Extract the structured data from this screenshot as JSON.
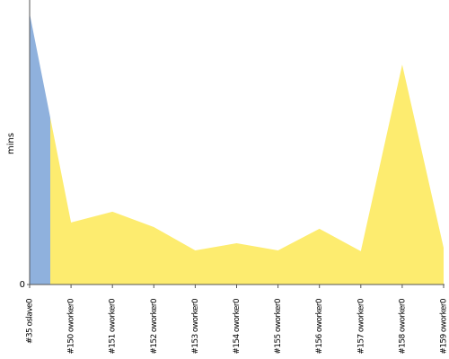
{
  "chart_data": {
    "type": "area",
    "y_label": "mins",
    "categories": [
      "#35 oslave0",
      "#150 oworker0",
      "#151 oworker0",
      "#152 oworker0",
      "#153 oworker0",
      "#154 oworker0",
      "#155 oworker0",
      "#156 oworker0",
      "#157 oworker0",
      "#158 oworker0",
      "#159 oworker0"
    ],
    "values": [
      9.53,
      2.18,
      2.56,
      2.02,
      1.2,
      1.45,
      1.2,
      1.96,
      1.17,
      7.73,
      1.29
    ],
    "colors": [
      "#8fb1dd",
      "#fdec6f",
      "#fdec6f",
      "#fdec6f",
      "#fdec6f",
      "#fdec6f",
      "#fdec6f",
      "#fdec6f",
      "#fdec6f",
      "#fdec6f",
      "#fdec6f"
    ],
    "ylim": [
      0,
      10
    ],
    "yticks": [
      0
    ]
  }
}
